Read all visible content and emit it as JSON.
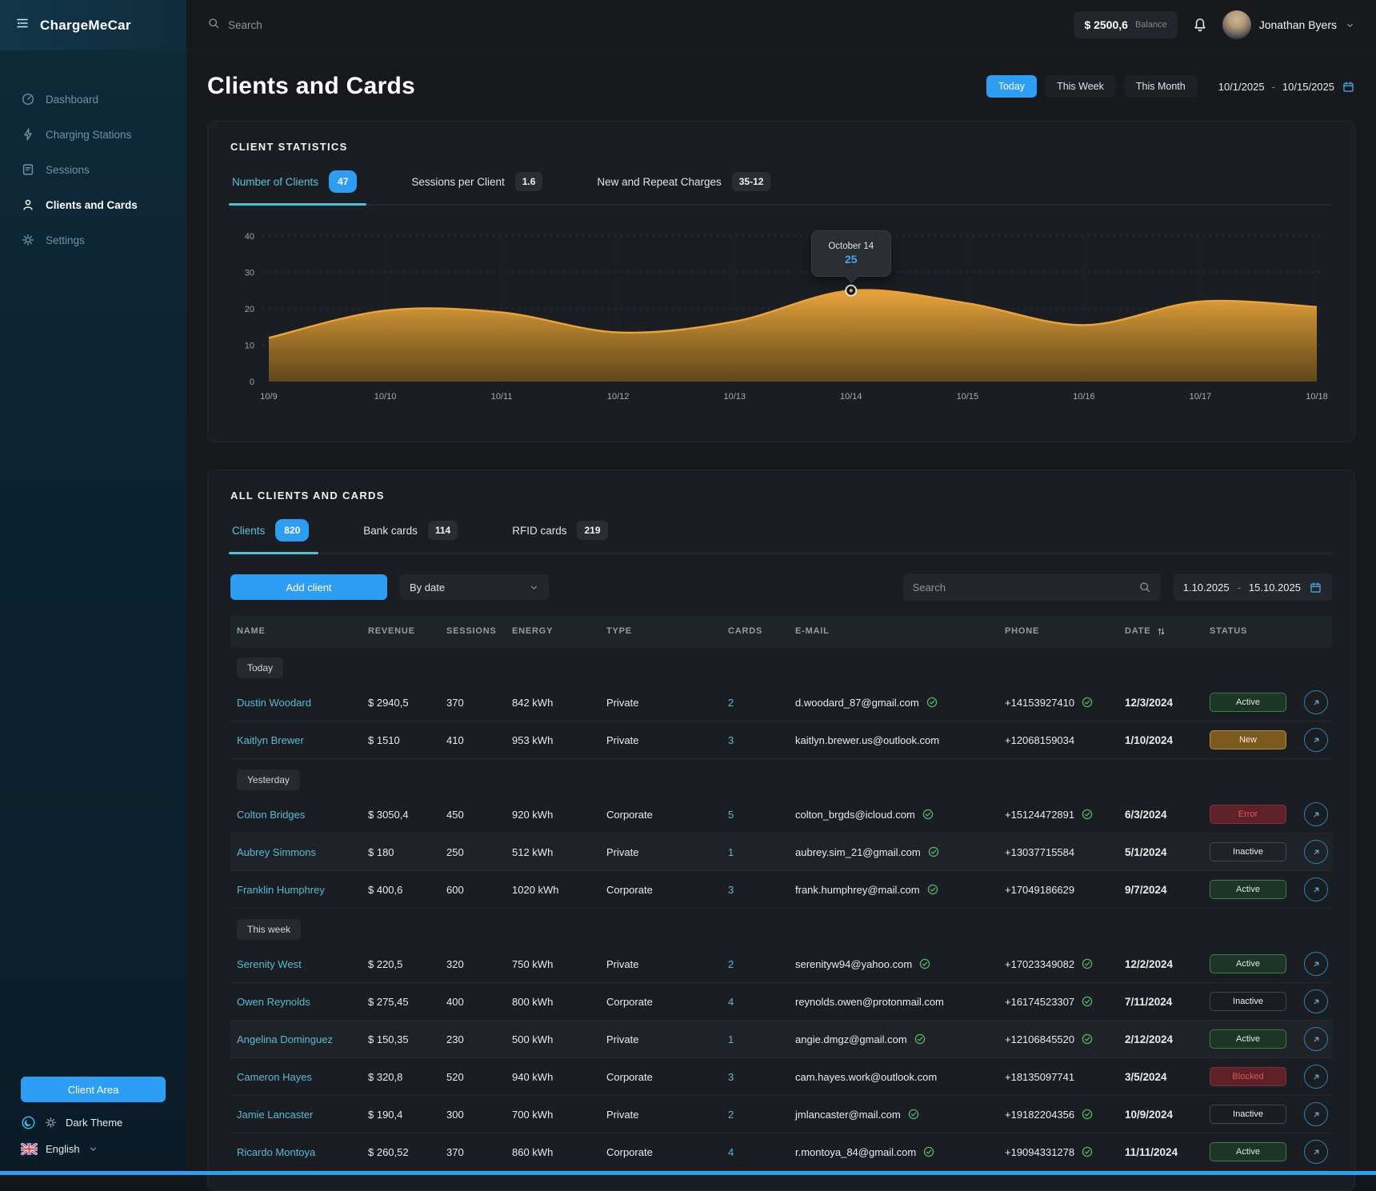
{
  "app": {
    "name": "ChargeMeCar"
  },
  "topbar": {
    "search_placeholder": "Search",
    "balance_value": "$ 2500,6",
    "balance_label": "Balance",
    "user_name": "Jonathan Byers",
    "icons": [
      "search-icon",
      "bell-icon",
      "chevron-down-icon"
    ]
  },
  "sidebar": {
    "items": [
      {
        "label": "Dashboard",
        "icon": "dashboard-icon",
        "active": false
      },
      {
        "label": "Charging Stations",
        "icon": "charging-icon",
        "active": false
      },
      {
        "label": "Sessions",
        "icon": "sessions-icon",
        "active": false
      },
      {
        "label": "Clients and Cards",
        "icon": "clients-icon",
        "active": true
      },
      {
        "label": "Settings",
        "icon": "settings-icon",
        "active": false
      }
    ],
    "client_area_label": "Client Area",
    "theme_label": "Dark Theme",
    "theme_icons": [
      "moon-icon",
      "sun-icon"
    ],
    "language_label": "English",
    "language_icon": "uk-flag-icon"
  },
  "page": {
    "title": "Clients and Cards",
    "period_filters": [
      {
        "label": "Today",
        "active": true
      },
      {
        "label": "This Week",
        "active": false
      },
      {
        "label": "This Month",
        "active": false
      }
    ],
    "date_from": "10/1/2025",
    "date_separator": "-",
    "date_to": "10/15/2025"
  },
  "stats": {
    "section_title": "CLIENT STATISTICS",
    "tabs": [
      {
        "label": "Number of Clients",
        "badge": "47",
        "active": true
      },
      {
        "label": "Sessions per Client",
        "badge": "1.6",
        "active": false
      },
      {
        "label": "New and Repeat Charges",
        "badge": "35-12",
        "active": false
      }
    ]
  },
  "chart_data": {
    "type": "area",
    "title": "Number of Clients",
    "x": [
      "10/9",
      "10/10",
      "10/11",
      "10/12",
      "10/13",
      "10/14",
      "10/15",
      "10/16",
      "10/17",
      "10/18"
    ],
    "values": [
      12,
      19.5,
      19,
      13.5,
      16.5,
      25,
      21.5,
      15.5,
      22,
      20.5
    ],
    "ylim": [
      0,
      40
    ],
    "yticks": [
      0,
      10,
      20,
      30,
      40
    ],
    "grid": true,
    "legend": "none",
    "fill_top": "#eda83e",
    "fill_bottom": "#6b4d18",
    "stroke": "#eda435",
    "tooltip": {
      "label": "October 14",
      "value": "25",
      "index": 5
    }
  },
  "clients_section": {
    "section_title": "ALL CLIENTS AND CARDS",
    "tabs": [
      {
        "label": "Clients",
        "badge": "820",
        "active": true
      },
      {
        "label": "Bank cards",
        "badge": "114",
        "active": false
      },
      {
        "label": "RFID cards",
        "badge": "219",
        "active": false
      }
    ],
    "add_button_label": "Add client",
    "sort_dropdown_value": "By date",
    "search_placeholder": "Search",
    "date_from": "1.10.2025",
    "date_separator": "-",
    "date_to": "15.10.2025",
    "table": {
      "columns": [
        "NAME",
        "REVENUE",
        "SESSIONS",
        "ENERGY",
        "TYPE",
        "CARDS",
        "E-MAIL",
        "PHONE",
        "DATE",
        "STATUS"
      ],
      "sort_column": "DATE",
      "groups": [
        {
          "label": "Today",
          "rows": [
            {
              "name": "Dustin Woodard",
              "revenue": "$ 2940,5",
              "sessions": "370",
              "energy": "842 kWh",
              "type": "Private",
              "cards": "2",
              "email": "d.woodard_87@gmail.com",
              "email_verified": true,
              "phone": "+14153927410",
              "phone_verified": true,
              "date": "12/3/2024",
              "status": "Active",
              "status_type": "active",
              "striped": false
            },
            {
              "name": "Kaitlyn Brewer",
              "revenue": "$ 1510",
              "sessions": "410",
              "energy": "953 kWh",
              "type": "Private",
              "cards": "3",
              "email": "kaitlyn.brewer.us@outlook.com",
              "email_verified": false,
              "phone": "+12068159034",
              "phone_verified": false,
              "date": "1/10/2024",
              "status": "New",
              "status_type": "new",
              "striped": false
            }
          ]
        },
        {
          "label": "Yesterday",
          "rows": [
            {
              "name": "Colton Bridges",
              "revenue": "$ 3050,4",
              "sessions": "450",
              "energy": "920 kWh",
              "type": "Corporate",
              "cards": "5",
              "email": "colton_brgds@icloud.com",
              "email_verified": true,
              "phone": "+15124472891",
              "phone_verified": true,
              "date": "6/3/2024",
              "status": "Error",
              "status_type": "error",
              "striped": false
            },
            {
              "name": "Aubrey Simmons",
              "revenue": "$ 180",
              "sessions": "250",
              "energy": "512 kWh",
              "type": "Private",
              "cards": "1",
              "email": "aubrey.sim_21@gmail.com",
              "email_verified": true,
              "phone": "+13037715584",
              "phone_verified": false,
              "date": "5/1/2024",
              "status": "Inactive",
              "status_type": "inactive",
              "striped": true
            },
            {
              "name": "Franklin Humphrey",
              "revenue": "$ 400,6",
              "sessions": "600",
              "energy": "1020 kWh",
              "type": "Corporate",
              "cards": "3",
              "email": "frank.humphrey@mail.com",
              "email_verified": true,
              "phone": "+17049186629",
              "phone_verified": false,
              "date": "9/7/2024",
              "status": "Active",
              "status_type": "active",
              "striped": false
            }
          ]
        },
        {
          "label": "This week",
          "rows": [
            {
              "name": "Serenity West",
              "revenue": "$ 220,5",
              "sessions": "320",
              "energy": "750 kWh",
              "type": "Private",
              "cards": "2",
              "email": "serenityw94@yahoo.com",
              "email_verified": true,
              "phone": "+17023349082",
              "phone_verified": true,
              "date": "12/2/2024",
              "status": "Active",
              "status_type": "active",
              "striped": false
            },
            {
              "name": "Owen Reynolds",
              "revenue": "$ 275,45",
              "sessions": "400",
              "energy": "800 kWh",
              "type": "Corporate",
              "cards": "4",
              "email": "reynolds.owen@protonmail.com",
              "email_verified": false,
              "phone": "+16174523307",
              "phone_verified": true,
              "date": "7/11/2024",
              "status": "Inactive",
              "status_type": "inactive",
              "striped": false
            },
            {
              "name": "Angelina Dominguez",
              "revenue": "$ 150,35",
              "sessions": "230",
              "energy": "500 kWh",
              "type": "Private",
              "cards": "1",
              "email": "angie.dmgz@gmail.com",
              "email_verified": true,
              "phone": "+12106845520",
              "phone_verified": true,
              "date": "2/12/2024",
              "status": "Active",
              "status_type": "active",
              "striped": true
            },
            {
              "name": "Cameron Hayes",
              "revenue": "$ 320,8",
              "sessions": "520",
              "energy": "940 kWh",
              "type": "Corporate",
              "cards": "3",
              "email": "cam.hayes.work@outlook.com",
              "email_verified": false,
              "phone": "+18135097741",
              "phone_verified": false,
              "date": "3/5/2024",
              "status": "Blocked",
              "status_type": "blocked",
              "striped": false
            },
            {
              "name": "Jamie Lancaster",
              "revenue": "$ 190,4",
              "sessions": "300",
              "energy": "700 kWh",
              "type": "Private",
              "cards": "2",
              "email": "jmlancaster@mail.com",
              "email_verified": true,
              "phone": "+19182204356",
              "phone_verified": true,
              "date": "10/9/2024",
              "status": "Inactive",
              "status_type": "inactive",
              "striped": false
            },
            {
              "name": "Ricardo Montoya",
              "revenue": "$ 260,52",
              "sessions": "370",
              "energy": "860 kWh",
              "type": "Corporate",
              "cards": "4",
              "email": "r.montoya_84@gmail.com",
              "email_verified": true,
              "phone": "+19094331278",
              "phone_verified": true,
              "date": "11/11/2024",
              "status": "Active",
              "status_type": "active",
              "striped": false
            }
          ]
        }
      ]
    }
  },
  "colors": {
    "accent": "#2e9df4",
    "tab_underline": "#4ec1d6",
    "link": "#59b9d6",
    "chart_fill_top": "#eda83e",
    "chart_fill_bottom": "#6b4d18",
    "status_active": "#3f7a4c",
    "status_new": "#b38b42",
    "status_error": "#e25555",
    "status_inactive": "#43484e",
    "sidebar_top": "#123649",
    "bottom_strip": "#2e9df4"
  }
}
